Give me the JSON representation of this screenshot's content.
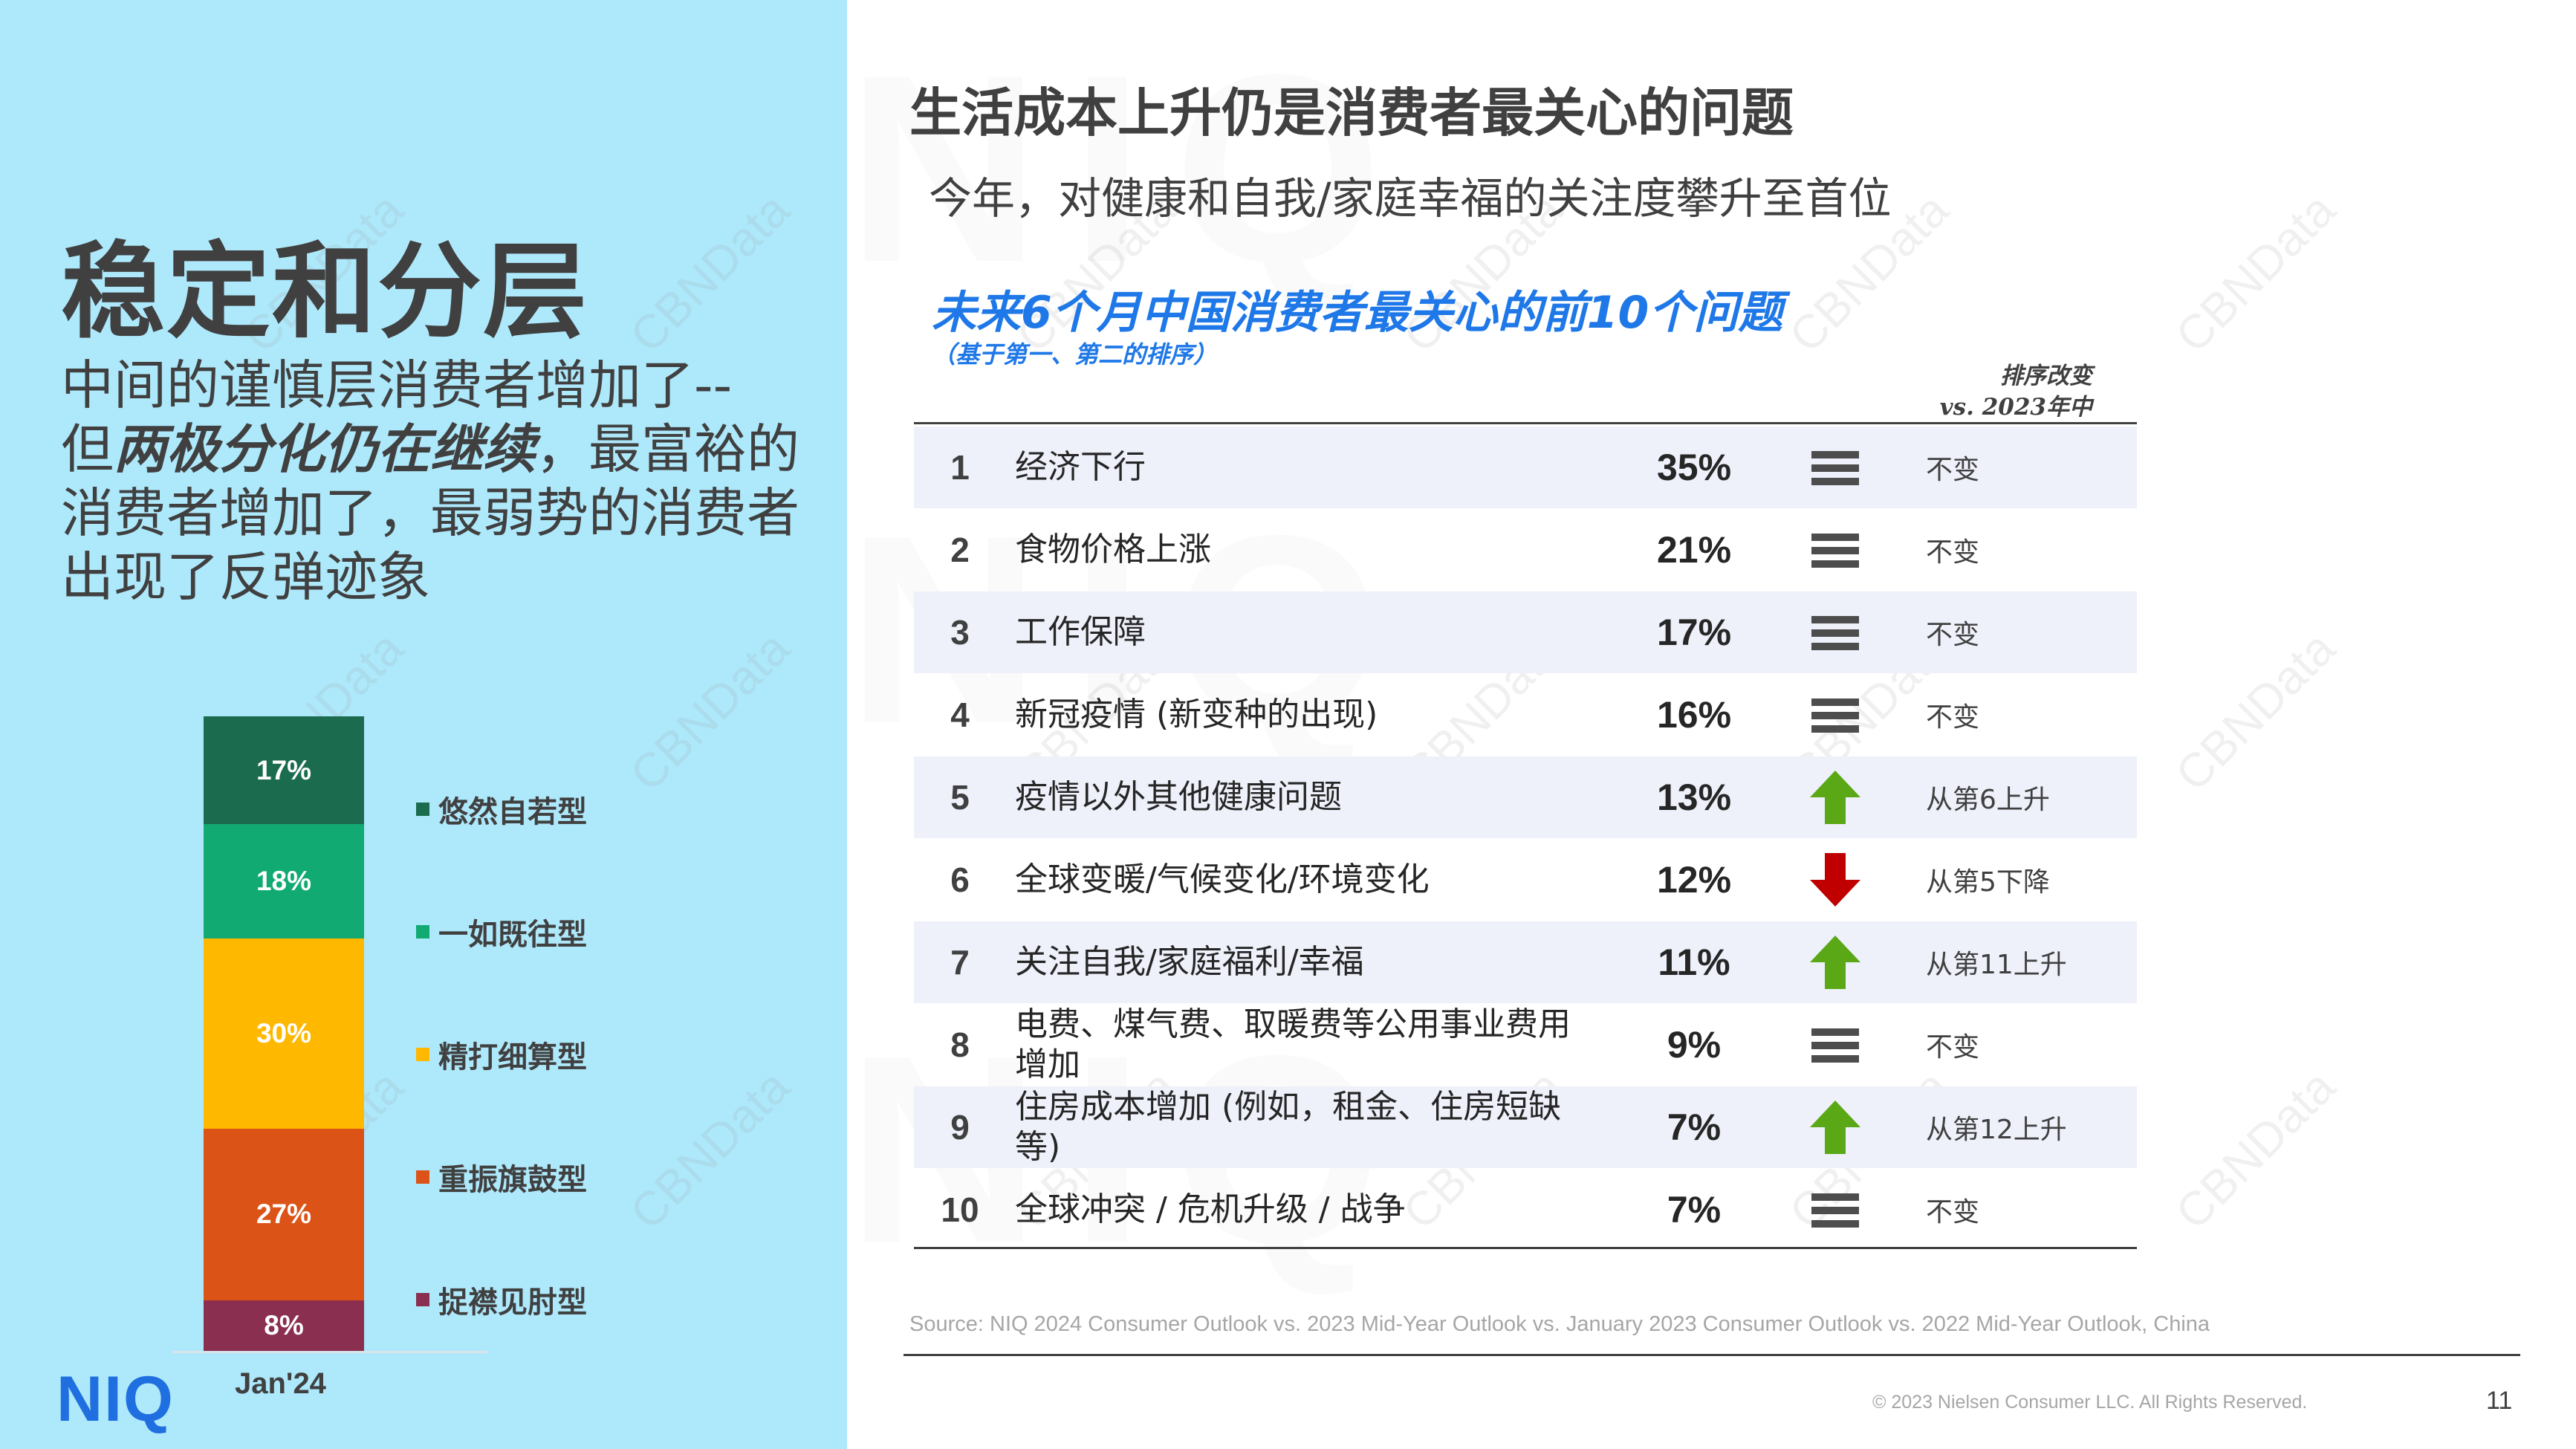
{
  "watermark": {
    "text": "CBNData",
    "big_text": "NIQ"
  },
  "left": {
    "title": "稳定和分层",
    "desc_line1": "中间的谨慎层消费者增加了--",
    "desc_emph_prefix": "但",
    "desc_emph": "两极分化仍在继续",
    "desc_after_emph": "，最富裕的消费者增加了，最弱势的消费者出现了反弹迹象",
    "bar_label": "Jan'24",
    "logo": "NIQ"
  },
  "chart_data": {
    "type": "bar",
    "stacked": true,
    "categories": [
      "Jan'24"
    ],
    "series": [
      {
        "name": "悠然自若型",
        "value": 17,
        "label": "17%",
        "color": "#1b6c4f"
      },
      {
        "name": "一如既往型",
        "value": 18,
        "label": "18%",
        "color": "#10aa72"
      },
      {
        "name": "精打细算型",
        "value": 30,
        "label": "30%",
        "color": "#ffb800"
      },
      {
        "name": "重振旗鼓型",
        "value": 27,
        "label": "27%",
        "color": "#dc5318"
      },
      {
        "name": "捉襟见肘型",
        "value": 8,
        "label": "8%",
        "color": "#8a2f4f"
      }
    ]
  },
  "main": {
    "title": "生活成本上升仍是消费者最关心的问题",
    "subtitle": "今年，对健康和自我/家庭幸福的关注度攀升至首位",
    "table_title": "未来6个月中国消费者最关心的前10个问题",
    "table_note": "（基于第一、第二的排序）",
    "rank_change_header_line1": "排序改变",
    "rank_change_header_line2": "vs. 2023年中",
    "rows": [
      {
        "rank": "1",
        "issue": "经济下行",
        "pct": "35%",
        "trend": "equal",
        "change": "不变"
      },
      {
        "rank": "2",
        "issue": "食物价格上涨",
        "pct": "21%",
        "trend": "equal",
        "change": "不变"
      },
      {
        "rank": "3",
        "issue": "工作保障",
        "pct": "17%",
        "trend": "equal",
        "change": "不变"
      },
      {
        "rank": "4",
        "issue": "新冠疫情 (新变种的出现)",
        "pct": "16%",
        "trend": "equal",
        "change": "不变"
      },
      {
        "rank": "5",
        "issue": "疫情以外其他健康问题",
        "pct": "13%",
        "trend": "up",
        "change": "从第6上升"
      },
      {
        "rank": "6",
        "issue": "全球变暖/气候变化/环境变化",
        "pct": "12%",
        "trend": "down",
        "change": "从第5下降"
      },
      {
        "rank": "7",
        "issue": "关注自我/家庭福利/幸福",
        "pct": "11%",
        "trend": "up",
        "change": "从第11上升"
      },
      {
        "rank": "8",
        "issue": "电费、煤气费、取暖费等公用事业费用增加",
        "pct": "9%",
        "trend": "equal",
        "change": "不变"
      },
      {
        "rank": "9",
        "issue": "住房成本增加 (例如，租金、住房短缺等)",
        "pct": "7%",
        "trend": "up",
        "change": "从第12上升"
      },
      {
        "rank": "10",
        "issue": "全球冲突 / 危机升级 / 战争",
        "pct": "7%",
        "trend": "equal",
        "change": "不变"
      }
    ],
    "source": "Source: NIQ 2024 Consumer Outlook vs. 2023 Mid-Year Outlook vs. January 2023 Consumer Outlook vs. 2022 Mid-Year Outlook, China",
    "copyright": "© 2023 Nielsen Consumer LLC. All Rights Reserved.",
    "page_number": "11"
  },
  "colors": {
    "up": "#5aa816",
    "down": "#c00000",
    "equal": "#4d4d4d",
    "accent": "#1f78e8"
  }
}
